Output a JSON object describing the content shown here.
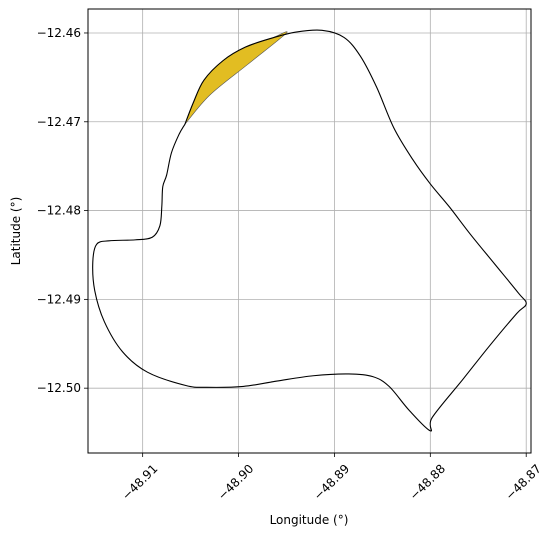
{
  "chart_data": {
    "type": "map",
    "title": "",
    "xlabel": "Longitude (°)",
    "ylabel": "Latitude (°)",
    "xlim": [
      -48.9157,
      -48.8695
    ],
    "ylim": [
      -12.5073,
      -12.4573
    ],
    "grid": true,
    "xticks": [
      -48.91,
      -48.9,
      -48.89,
      -48.88,
      -48.87
    ],
    "xtick_labels": [
      "−48.91",
      "−48.90",
      "−48.89",
      "−48.88",
      "−48.87"
    ],
    "yticks": [
      -12.46,
      -12.47,
      -12.48,
      -12.49,
      -12.5
    ],
    "ytick_labels": [
      "−12.46",
      "−12.47",
      "−12.48",
      "−12.49",
      "−12.50"
    ],
    "boundary": {
      "stroke": "#000000",
      "points": [
        [
          -48.9056,
          -12.4703
        ],
        [
          -48.9047,
          -12.4678
        ],
        [
          -48.9036,
          -12.4653
        ],
        [
          -48.9016,
          -12.4631
        ],
        [
          -48.8993,
          -12.4616
        ],
        [
          -48.8966,
          -12.4606
        ],
        [
          -48.894,
          -12.4599
        ],
        [
          -48.8913,
          -12.4597
        ],
        [
          -48.889,
          -12.4605
        ],
        [
          -48.8873,
          -12.4626
        ],
        [
          -48.8856,
          -12.4661
        ],
        [
          -48.8838,
          -12.4707
        ],
        [
          -48.8818,
          -12.4743
        ],
        [
          -48.88,
          -12.477
        ],
        [
          -48.878,
          -12.4796
        ],
        [
          -48.8758,
          -12.4827
        ],
        [
          -48.8733,
          -12.486
        ],
        [
          -48.8708,
          -12.4893
        ],
        [
          -48.87,
          -12.4905
        ],
        [
          -48.871,
          -12.4916
        ],
        [
          -48.8738,
          -12.4952
        ],
        [
          -48.8766,
          -12.499
        ],
        [
          -48.8798,
          -12.5033
        ],
        [
          -48.88,
          -12.5048
        ],
        [
          -48.8822,
          -12.5025
        ],
        [
          -48.8843,
          -12.4998
        ],
        [
          -48.886,
          -12.4987
        ],
        [
          -48.8885,
          -12.4984
        ],
        [
          -48.8922,
          -12.4986
        ],
        [
          -48.896,
          -12.4992
        ],
        [
          -48.8995,
          -12.4998
        ],
        [
          -48.9033,
          -12.4999
        ],
        [
          -48.9055,
          -12.4997
        ],
        [
          -48.9095,
          -12.4982
        ],
        [
          -48.9121,
          -12.4959
        ],
        [
          -48.914,
          -12.4925
        ],
        [
          -48.915,
          -12.489
        ],
        [
          -48.9152,
          -12.4858
        ],
        [
          -48.9148,
          -12.4838
        ],
        [
          -48.9135,
          -12.4834
        ],
        [
          -48.9108,
          -12.4833
        ],
        [
          -48.909,
          -12.483
        ],
        [
          -48.9082,
          -12.4817
        ],
        [
          -48.908,
          -12.4795
        ],
        [
          -48.9079,
          -12.4773
        ],
        [
          -48.9075,
          -12.476
        ],
        [
          -48.907,
          -12.4735
        ],
        [
          -48.9062,
          -12.4714
        ],
        [
          -48.9056,
          -12.4703
        ]
      ]
    },
    "highlight": {
      "fill": "#e2bd22",
      "stroke": "#555555",
      "points": [
        [
          -48.9056,
          -12.4703
        ],
        [
          -48.9047,
          -12.4678
        ],
        [
          -48.9036,
          -12.4653
        ],
        [
          -48.9016,
          -12.4631
        ],
        [
          -48.8993,
          -12.4616
        ],
        [
          -48.8966,
          -12.4606
        ],
        [
          -48.895,
          -12.46
        ],
        [
          -48.899,
          -12.4635
        ],
        [
          -48.903,
          -12.467
        ],
        [
          -48.9056,
          -12.4703
        ]
      ]
    }
  }
}
